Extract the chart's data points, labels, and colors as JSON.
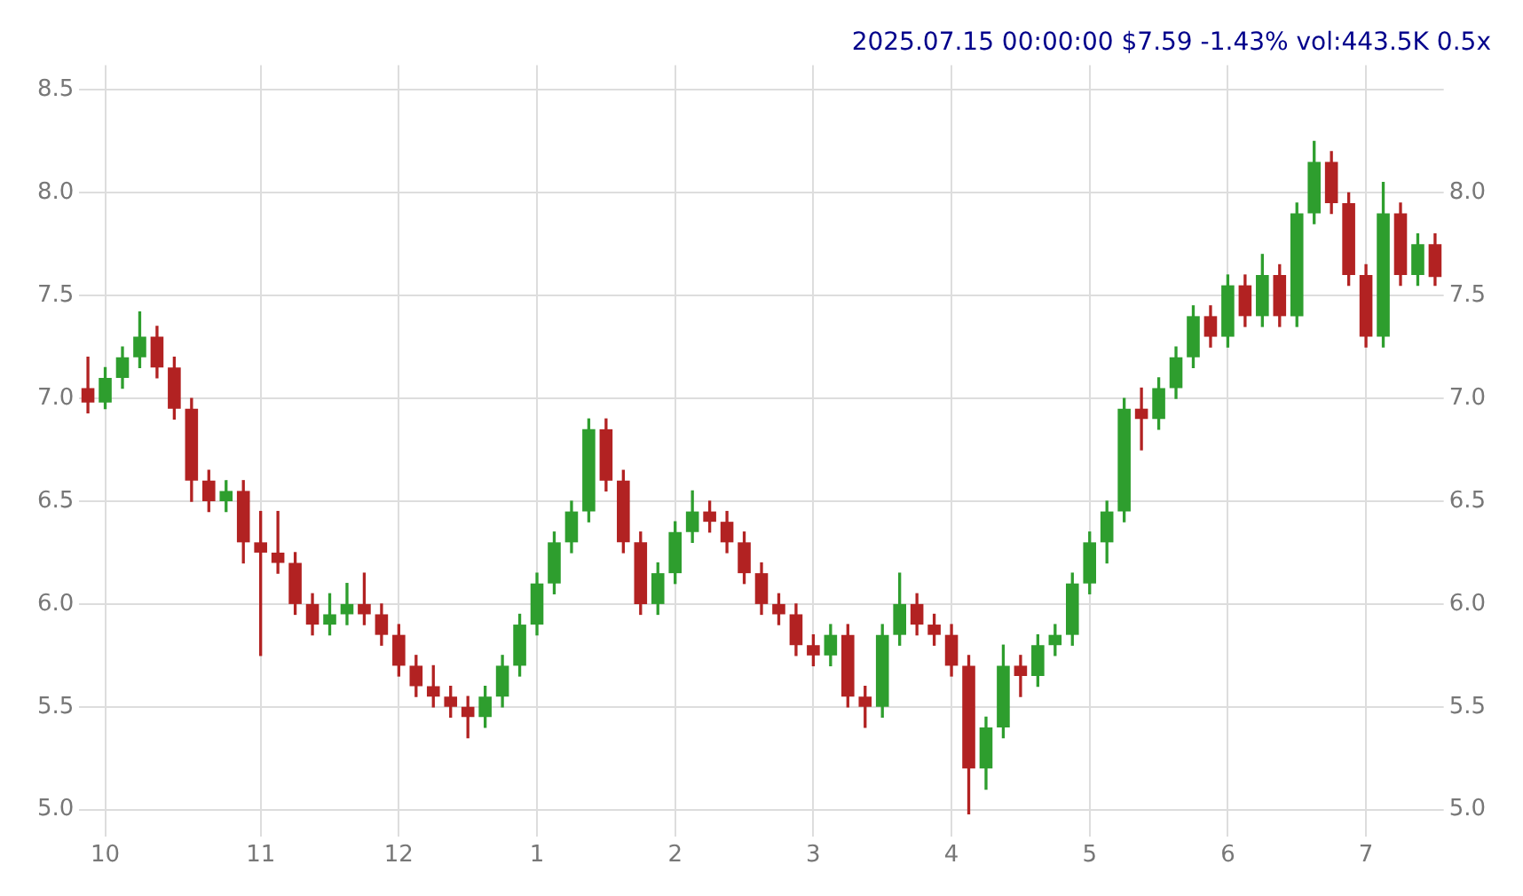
{
  "chart_data": {
    "type": "candlestick",
    "title": "2025.07.15 00:00:00 $7.59 -1.43% vol:443.5K 0.5x",
    "categories": [
      null,
      "10",
      null,
      null,
      null,
      null,
      null,
      null,
      null,
      null,
      "11",
      null,
      null,
      null,
      null,
      null,
      null,
      null,
      "12",
      null,
      null,
      null,
      null,
      null,
      null,
      null,
      "1",
      null,
      null,
      null,
      null,
      null,
      null,
      null,
      "2",
      null,
      null,
      null,
      null,
      null,
      null,
      null,
      "3",
      null,
      null,
      null,
      null,
      null,
      null,
      null,
      "4",
      null,
      null,
      null,
      null,
      null,
      null,
      null,
      "5",
      null,
      null,
      null,
      null,
      null,
      null,
      null,
      "6",
      null,
      null,
      null,
      null,
      null,
      null,
      null,
      "7",
      null,
      null,
      null,
      null
    ],
    "ohlc": [
      [
        7.05,
        7.2,
        6.93,
        6.98
      ],
      [
        6.98,
        7.15,
        6.95,
        7.1
      ],
      [
        7.1,
        7.25,
        7.05,
        7.2
      ],
      [
        7.2,
        7.42,
        7.15,
        7.3
      ],
      [
        7.3,
        7.35,
        7.1,
        7.15
      ],
      [
        7.15,
        7.2,
        6.9,
        6.95
      ],
      [
        6.95,
        7.0,
        6.5,
        6.6
      ],
      [
        6.6,
        6.65,
        6.45,
        6.5
      ],
      [
        6.5,
        6.6,
        6.45,
        6.55
      ],
      [
        6.55,
        6.6,
        6.2,
        6.3
      ],
      [
        6.3,
        6.45,
        5.75,
        6.25
      ],
      [
        6.25,
        6.45,
        6.15,
        6.2
      ],
      [
        6.2,
        6.25,
        5.95,
        6.0
      ],
      [
        6.0,
        6.05,
        5.85,
        5.9
      ],
      [
        5.9,
        6.05,
        5.85,
        5.95
      ],
      [
        5.95,
        6.1,
        5.9,
        6.0
      ],
      [
        6.0,
        6.15,
        5.9,
        5.95
      ],
      [
        5.95,
        6.0,
        5.8,
        5.85
      ],
      [
        5.85,
        5.9,
        5.65,
        5.7
      ],
      [
        5.7,
        5.75,
        5.55,
        5.6
      ],
      [
        5.6,
        5.7,
        5.5,
        5.55
      ],
      [
        5.55,
        5.6,
        5.45,
        5.5
      ],
      [
        5.5,
        5.55,
        5.35,
        5.45
      ],
      [
        5.45,
        5.6,
        5.4,
        5.55
      ],
      [
        5.55,
        5.75,
        5.5,
        5.7
      ],
      [
        5.7,
        5.95,
        5.65,
        5.9
      ],
      [
        5.9,
        6.15,
        5.85,
        6.1
      ],
      [
        6.1,
        6.35,
        6.05,
        6.3
      ],
      [
        6.3,
        6.5,
        6.25,
        6.45
      ],
      [
        6.45,
        6.9,
        6.4,
        6.85
      ],
      [
        6.85,
        6.9,
        6.55,
        6.6
      ],
      [
        6.6,
        6.65,
        6.25,
        6.3
      ],
      [
        6.3,
        6.35,
        5.95,
        6.0
      ],
      [
        6.0,
        6.2,
        5.95,
        6.15
      ],
      [
        6.15,
        6.4,
        6.1,
        6.35
      ],
      [
        6.35,
        6.55,
        6.3,
        6.45
      ],
      [
        6.45,
        6.5,
        6.35,
        6.4
      ],
      [
        6.4,
        6.45,
        6.25,
        6.3
      ],
      [
        6.3,
        6.35,
        6.1,
        6.15
      ],
      [
        6.15,
        6.2,
        5.95,
        6.0
      ],
      [
        6.0,
        6.05,
        5.9,
        5.95
      ],
      [
        5.95,
        6.0,
        5.75,
        5.8
      ],
      [
        5.8,
        5.85,
        5.7,
        5.75
      ],
      [
        5.75,
        5.9,
        5.7,
        5.85
      ],
      [
        5.85,
        5.9,
        5.5,
        5.55
      ],
      [
        5.55,
        5.6,
        5.4,
        5.5
      ],
      [
        5.5,
        5.9,
        5.45,
        5.85
      ],
      [
        5.85,
        6.15,
        5.8,
        6.0
      ],
      [
        6.0,
        6.05,
        5.85,
        5.9
      ],
      [
        5.9,
        5.95,
        5.8,
        5.85
      ],
      [
        5.85,
        5.9,
        5.65,
        5.7
      ],
      [
        5.7,
        5.75,
        4.98,
        5.2
      ],
      [
        5.2,
        5.45,
        5.1,
        5.4
      ],
      [
        5.4,
        5.8,
        5.35,
        5.7
      ],
      [
        5.7,
        5.75,
        5.55,
        5.65
      ],
      [
        5.65,
        5.85,
        5.6,
        5.8
      ],
      [
        5.8,
        5.9,
        5.75,
        5.85
      ],
      [
        5.85,
        6.15,
        5.8,
        6.1
      ],
      [
        6.1,
        6.35,
        6.05,
        6.3
      ],
      [
        6.3,
        6.5,
        6.2,
        6.45
      ],
      [
        6.45,
        7.0,
        6.4,
        6.95
      ],
      [
        6.95,
        7.05,
        6.75,
        6.9
      ],
      [
        6.9,
        7.1,
        6.85,
        7.05
      ],
      [
        7.05,
        7.25,
        7.0,
        7.2
      ],
      [
        7.2,
        7.45,
        7.15,
        7.4
      ],
      [
        7.4,
        7.45,
        7.25,
        7.3
      ],
      [
        7.3,
        7.6,
        7.25,
        7.55
      ],
      [
        7.55,
        7.6,
        7.35,
        7.4
      ],
      [
        7.4,
        7.7,
        7.35,
        7.6
      ],
      [
        7.6,
        7.65,
        7.35,
        7.4
      ],
      [
        7.4,
        7.95,
        7.35,
        7.9
      ],
      [
        7.9,
        8.25,
        7.85,
        8.15
      ],
      [
        8.15,
        8.2,
        7.9,
        7.95
      ],
      [
        7.95,
        8.0,
        7.55,
        7.6
      ],
      [
        7.6,
        7.65,
        7.25,
        7.3
      ],
      [
        7.3,
        8.05,
        7.25,
        7.9
      ],
      [
        7.9,
        7.95,
        7.55,
        7.6
      ],
      [
        7.6,
        7.8,
        7.55,
        7.75
      ],
      [
        7.75,
        7.8,
        7.55,
        7.59
      ]
    ],
    "colors": [
      "#b22222",
      "#2e9e2e",
      "#2e9e2e",
      "#2e9e2e",
      "#b22222",
      "#b22222",
      "#b22222",
      "#b22222",
      "#2e9e2e",
      "#b22222",
      "#b22222",
      "#b22222",
      "#b22222",
      "#b22222",
      "#2e9e2e",
      "#2e9e2e",
      "#b22222",
      "#b22222",
      "#b22222",
      "#b22222",
      "#b22222",
      "#b22222",
      "#b22222",
      "#2e9e2e",
      "#2e9e2e",
      "#2e9e2e",
      "#2e9e2e",
      "#2e9e2e",
      "#2e9e2e",
      "#2e9e2e",
      "#b22222",
      "#b22222",
      "#b22222",
      "#2e9e2e",
      "#2e9e2e",
      "#2e9e2e",
      "#b22222",
      "#b22222",
      "#b22222",
      "#b22222",
      "#b22222",
      "#b22222",
      "#b22222",
      "#2e9e2e",
      "#b22222",
      "#b22222",
      "#2e9e2e",
      "#2e9e2e",
      "#b22222",
      "#b22222",
      "#b22222",
      "#b22222",
      "#2e9e2e",
      "#2e9e2e",
      "#b22222",
      "#2e9e2e",
      "#2e9e2e",
      "#2e9e2e",
      "#2e9e2e",
      "#2e9e2e",
      "#2e9e2e",
      "#b22222",
      "#2e9e2e",
      "#2e9e2e",
      "#2e9e2e",
      "#b22222",
      "#2e9e2e",
      "#b22222",
      "#2e9e2e",
      "#b22222",
      "#2e9e2e",
      "#2e9e2e",
      "#b22222",
      "#b22222",
      "#b22222",
      "#2e9e2e",
      "#b22222",
      "#2e9e2e",
      "#b22222"
    ],
    "ylim": [
      4.87,
      8.62
    ],
    "yticks": [
      {
        "value": 5,
        "label": "5.0"
      },
      {
        "value": 5.5,
        "label": "5.5"
      },
      {
        "value": 6,
        "label": "6.0"
      },
      {
        "value": 6.5,
        "label": "6.5"
      },
      {
        "value": 7,
        "label": "7.0"
      },
      {
        "value": 7.5,
        "label": "7.5"
      },
      {
        "value": 8,
        "label": "8.0"
      },
      {
        "value": 8.5,
        "label": "8.5"
      }
    ],
    "y2lim": [
      4.87,
      8.62
    ],
    "y2ticks": [
      {
        "value": 5,
        "label": "5.0"
      },
      {
        "value": 5.5,
        "label": "5.5"
      },
      {
        "value": 6,
        "label": "6.0"
      },
      {
        "value": 6.5,
        "label": "6.5"
      },
      {
        "value": 7,
        "label": "7.0"
      },
      {
        "value": 7.5,
        "label": "7.5"
      },
      {
        "value": 8,
        "label": "8.0"
      }
    ],
    "grid": true,
    "legend": false
  }
}
